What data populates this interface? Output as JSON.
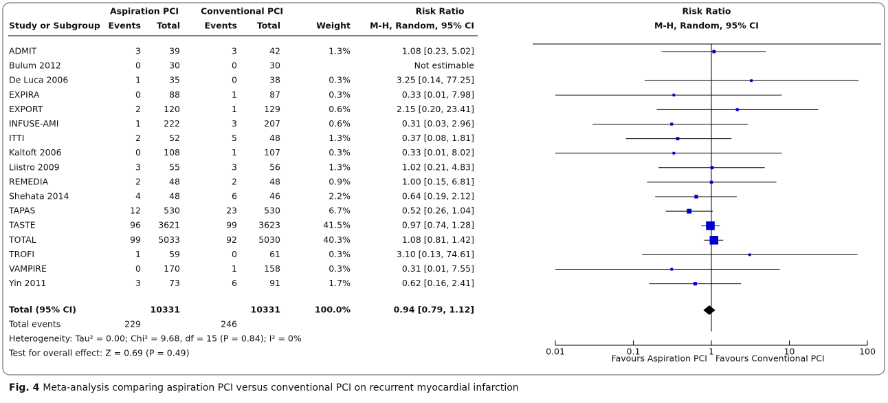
{
  "chart_data": {
    "type": "forest",
    "headers": {
      "group_a": "Aspiration PCI",
      "group_c": "Conventional PCI",
      "risk_ratio": "Risk Ratio",
      "study": "Study or Subgroup",
      "events_a": "Events",
      "total_a": "Total",
      "events_c": "Events",
      "total_c": "Total",
      "weight": "Weight",
      "method": "M-H, Random, 95% CI",
      "plot_title": "Risk Ratio",
      "plot_method": "M-H, Random, 95% CI"
    },
    "studies": [
      "ADMIT",
      "Bulum 2012",
      "De Luca 2006",
      "EXPIRA",
      "EXPORT",
      "INFUSE-AMI",
      "ITTI",
      "Kaltoft 2006",
      "Liistro 2009",
      "REMEDIA",
      "Shehata 2014",
      "TAPAS",
      "TASTE",
      "TOTAL",
      "TROFI",
      "VAMPIRE",
      "Yin 2011"
    ],
    "events_a": [
      3,
      0,
      1,
      0,
      2,
      1,
      2,
      0,
      3,
      2,
      4,
      12,
      96,
      99,
      1,
      0,
      3
    ],
    "total_a": [
      39,
      30,
      35,
      88,
      120,
      222,
      52,
      108,
      55,
      48,
      48,
      530,
      3621,
      5033,
      59,
      170,
      73
    ],
    "events_c": [
      3,
      0,
      0,
      1,
      1,
      3,
      5,
      1,
      3,
      2,
      6,
      23,
      99,
      92,
      0,
      1,
      6
    ],
    "total_c": [
      42,
      30,
      38,
      87,
      129,
      207,
      48,
      107,
      56,
      48,
      46,
      530,
      3623,
      5030,
      61,
      158,
      91
    ],
    "weights": [
      1.3,
      null,
      0.3,
      0.3,
      0.6,
      0.6,
      1.3,
      0.3,
      1.3,
      0.9,
      2.2,
      6.7,
      41.5,
      40.3,
      0.3,
      0.3,
      1.7
    ],
    "weight_labels": [
      "1.3%",
      null,
      "0.3%",
      "0.3%",
      "0.6%",
      "0.6%",
      "1.3%",
      "0.3%",
      "1.3%",
      "0.9%",
      "2.2%",
      "6.7%",
      "41.5%",
      "40.3%",
      "0.3%",
      "0.3%",
      "1.7%"
    ],
    "rr": [
      1.08,
      null,
      3.25,
      0.33,
      2.15,
      0.31,
      0.37,
      0.33,
      1.02,
      1.0,
      0.64,
      0.52,
      0.97,
      1.08,
      3.1,
      0.31,
      0.62
    ],
    "ci_lo": [
      0.23,
      null,
      0.14,
      0.01,
      0.2,
      0.03,
      0.08,
      0.01,
      0.21,
      0.15,
      0.19,
      0.26,
      0.74,
      0.81,
      0.13,
      0.01,
      0.16
    ],
    "ci_hi": [
      5.02,
      null,
      77.25,
      7.98,
      23.41,
      2.96,
      1.81,
      8.02,
      4.83,
      6.81,
      2.12,
      1.04,
      1.28,
      1.42,
      74.61,
      7.55,
      2.41
    ],
    "ci_labels": [
      "1.08 [0.23, 5.02]",
      "Not estimable",
      "3.25 [0.14, 77.25]",
      "0.33 [0.01, 7.98]",
      "2.15 [0.20, 23.41]",
      "0.31 [0.03, 2.96]",
      "0.37 [0.08, 1.81]",
      "0.33 [0.01, 8.02]",
      "1.02 [0.21, 4.83]",
      "1.00 [0.15, 6.81]",
      "0.64 [0.19, 2.12]",
      "0.52 [0.26, 1.04]",
      "0.97 [0.74, 1.28]",
      "1.08 [0.81, 1.42]",
      "3.10 [0.13, 74.61]",
      "0.31 [0.01, 7.55]",
      "0.62 [0.16, 2.41]"
    ],
    "total": {
      "label": "Total (95% CI)",
      "total_a": 10331,
      "total_c": 10331,
      "weight": 100,
      "weight_label": "100.0%",
      "rr": 0.94,
      "ci_lo": 0.79,
      "ci_hi": 1.12,
      "ci_label": "0.94 [0.79, 1.12]"
    },
    "total_events": {
      "label": "Total events",
      "a": 229,
      "c": 246
    },
    "heterogeneity": "Heterogeneity: Tau² = 0.00; Chi² = 9.68, df = 15 (P = 0.84); I² = 0%",
    "overall_effect": "Test for overall effect: Z = 0.69 (P = 0.49)",
    "square_color": "#0000cc",
    "log_x": true,
    "xlim": [
      0.01,
      100
    ],
    "xticks": [
      0.01,
      0.1,
      1,
      10,
      100
    ],
    "favours_left": "Favours Aspiration PCI",
    "favours_right": "Favours Conventional PCI"
  },
  "caption": {
    "label": "Fig. 4",
    "text": "Meta-analysis comparing aspiration PCI versus conventional PCI on recurrent myocardial infarction"
  }
}
